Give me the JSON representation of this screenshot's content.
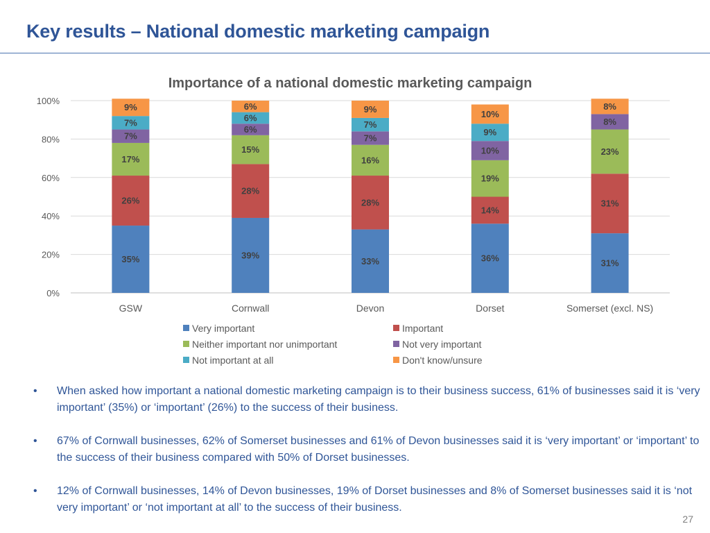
{
  "slide": {
    "title": "Key results – National domestic marketing campaign",
    "page_number": "27",
    "bullets": [
      "When asked how important a national domestic marketing campaign is to their business success, 61% of businesses said it is ‘very important’ (35%) or ‘important’ (26%) to the success of their business.",
      "67% of Cornwall businesses, 62% of Somerset businesses and 61% of Devon businesses said it is ‘very important’ or ‘important’ to the success of their business compared with 50% of Dorset businesses.",
      "12% of Cornwall businesses, 14% of Devon businesses, 19% of Dorset businesses and 8% of Somerset businesses said it is ‘not very important’ or ‘not important at all’ to the success of their business."
    ]
  },
  "chart_data": {
    "type": "bar",
    "stacked": true,
    "title": "Importance of a national domestic marketing campaign",
    "xlabel": "",
    "ylabel": "",
    "ylim": [
      0,
      100
    ],
    "yticks": [
      "0%",
      "20%",
      "40%",
      "60%",
      "80%",
      "100%"
    ],
    "grid": true,
    "legend_position": "bottom",
    "categories": [
      "GSW",
      "Cornwall",
      "Devon",
      "Dorset",
      "Somerset (excl. NS)"
    ],
    "series": [
      {
        "name": "Very important",
        "color": "#4F81BD",
        "values": [
          35,
          39,
          33,
          36,
          31
        ]
      },
      {
        "name": "Important",
        "color": "#C0504D",
        "values": [
          26,
          28,
          28,
          14,
          31
        ]
      },
      {
        "name": "Neither important nor unimportant",
        "color": "#9BBB59",
        "values": [
          17,
          15,
          16,
          19,
          23
        ]
      },
      {
        "name": "Not very important",
        "color": "#8064A2",
        "values": [
          7,
          6,
          7,
          10,
          8
        ]
      },
      {
        "name": "Not important at all",
        "color": "#4BACC6",
        "values": [
          7,
          6,
          7,
          9,
          0
        ]
      },
      {
        "name": "Don't know/unsure",
        "color": "#F79646",
        "values": [
          9,
          6,
          9,
          10,
          8
        ]
      }
    ]
  }
}
